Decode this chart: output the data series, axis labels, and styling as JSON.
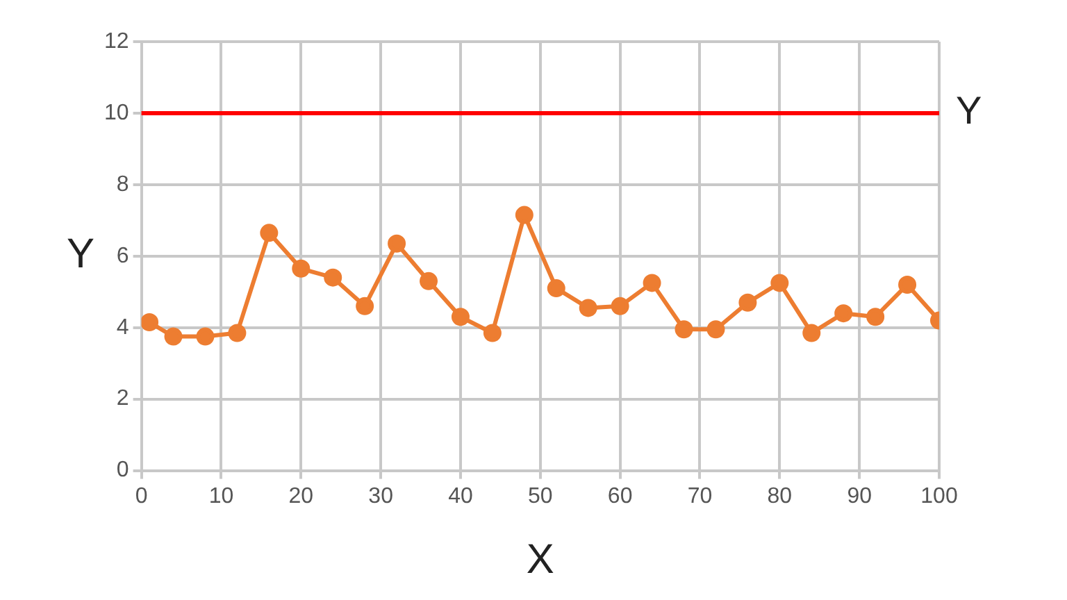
{
  "chart_data": {
    "type": "line",
    "xlabel": "X",
    "ylabel": "Y",
    "x": [
      1,
      4,
      8,
      12,
      16,
      20,
      24,
      28,
      32,
      36,
      40,
      44,
      48,
      52,
      56,
      60,
      64,
      68,
      72,
      76,
      80,
      84,
      88,
      92,
      96,
      100
    ],
    "series": [
      {
        "color": "#ed7d31",
        "values": [
          4.15,
          3.75,
          3.75,
          3.85,
          6.65,
          5.65,
          5.4,
          4.6,
          6.35,
          5.3,
          4.3,
          3.85,
          7.15,
          5.1,
          4.55,
          4.6,
          5.25,
          3.95,
          3.95,
          4.7,
          5.25,
          3.85,
          4.4,
          4.3,
          5.2,
          4.2
        ]
      }
    ],
    "xlim": [
      0,
      100
    ],
    "xticks": [
      0,
      10,
      20,
      30,
      40,
      50,
      60,
      70,
      80,
      90,
      100
    ],
    "ylim": [
      0,
      12
    ],
    "yticks": [
      0,
      2,
      4,
      6,
      8,
      10,
      12
    ],
    "ref_lines": [
      {
        "axis": "y",
        "value": 10,
        "label": "Y",
        "color": "#ff0000",
        "line_style": "solid"
      }
    ],
    "grid": true,
    "legend": false,
    "marker": "circle",
    "line_style": "solid"
  }
}
